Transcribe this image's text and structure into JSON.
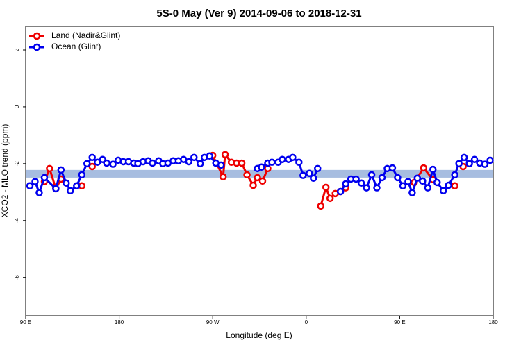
{
  "chart_data": {
    "type": "line",
    "title": "5S-0 May (Ver 9)   2014-09-06 to 2018-12-31",
    "x_label": "Longitude (deg E)",
    "y_label": "XCO2 - MLO trend (ppm)",
    "xlim": [
      90,
      540
    ],
    "ylim": [
      -7.35,
      2.83
    ],
    "xticks": [
      {
        "value": 90,
        "label": "90 E"
      },
      180,
      {
        "value": 270,
        "label": "90 W"
      },
      {
        "value": 360,
        "label": "0"
      },
      {
        "value": 450,
        "label": "90 E"
      },
      {
        "value": 540,
        "label": "180"
      }
    ],
    "yticks": [
      -6,
      -4,
      -2,
      0,
      2
    ],
    "band": [
      -2.49,
      -2.22
    ],
    "band_color": "#a7bde0",
    "legend": "top-left",
    "series": [
      {
        "name": "Land (Nadir&Glint)",
        "color": "#ee0000",
        "x": [
          108,
          113,
          119,
          124,
          128,
          144,
          150,
          154,
          160,
          270,
          280,
          282,
          288,
          293,
          298,
          303,
          309,
          313,
          318,
          323,
          330,
          374,
          379,
          383,
          388,
          393,
          398,
          420,
          464,
          473,
          482,
          490,
          503,
          507,
          511
        ],
        "values": [
          -2.63,
          -2.17,
          -2.88,
          -2.54,
          null,
          -2.78,
          null,
          -2.1,
          null,
          -1.71,
          -2.46,
          -1.68,
          -1.95,
          -1.98,
          -1.98,
          -2.39,
          -2.76,
          -2.49,
          -2.61,
          -2.17,
          null,
          -3.49,
          -2.83,
          -3.22,
          -3.05,
          -2.98,
          -2.85,
          null,
          -2.66,
          -2.15,
          -2.56,
          null,
          -2.78,
          null,
          -2.1
        ]
      },
      {
        "name": "Ocean (Glint)",
        "color": "#0000ee",
        "x": [
          94,
          99,
          103,
          108,
          119,
          124,
          129,
          133,
          139,
          144,
          149,
          154,
          159,
          164,
          168,
          174,
          179,
          184,
          189,
          194,
          198,
          203,
          208,
          212,
          218,
          222,
          227,
          232,
          237,
          242,
          247,
          252,
          258,
          262,
          267,
          273,
          278,
          295,
          313,
          317,
          323,
          327,
          333,
          337,
          343,
          347,
          353,
          357,
          363,
          367,
          371,
          380,
          393,
          398,
          403,
          408,
          413,
          418,
          423,
          428,
          433,
          438,
          443,
          448,
          453,
          458,
          462,
          467,
          472,
          477,
          482,
          486,
          492,
          497,
          503,
          507,
          512,
          517,
          522,
          527,
          532,
          537
        ],
        "values": [
          -2.78,
          -2.63,
          -3.02,
          -2.49,
          -2.88,
          -2.22,
          -2.68,
          -2.95,
          -2.78,
          -2.39,
          -2.0,
          -1.78,
          -1.95,
          -1.85,
          -1.98,
          -2.02,
          -1.88,
          -1.93,
          -1.93,
          -1.98,
          -2.0,
          -1.93,
          -1.9,
          -1.98,
          -1.9,
          -2.0,
          -1.98,
          -1.9,
          -1.9,
          -1.85,
          -1.93,
          -1.78,
          -2.0,
          -1.78,
          -1.73,
          -1.98,
          -2.05,
          null,
          -2.17,
          -2.12,
          -1.98,
          -1.95,
          -1.95,
          -1.85,
          -1.85,
          -1.78,
          -1.95,
          -2.41,
          -2.34,
          -2.51,
          -2.17,
          null,
          -2.98,
          -2.71,
          -2.54,
          -2.54,
          -2.68,
          -2.85,
          -2.39,
          -2.85,
          -2.49,
          -2.17,
          -2.15,
          -2.49,
          -2.78,
          -2.63,
          -3.02,
          -2.51,
          -2.61,
          -2.85,
          -2.2,
          -2.66,
          -2.95,
          -2.76,
          -2.39,
          -2.0,
          -1.78,
          -2.0,
          -1.85,
          -1.98,
          -2.02,
          -1.88
        ]
      }
    ]
  }
}
